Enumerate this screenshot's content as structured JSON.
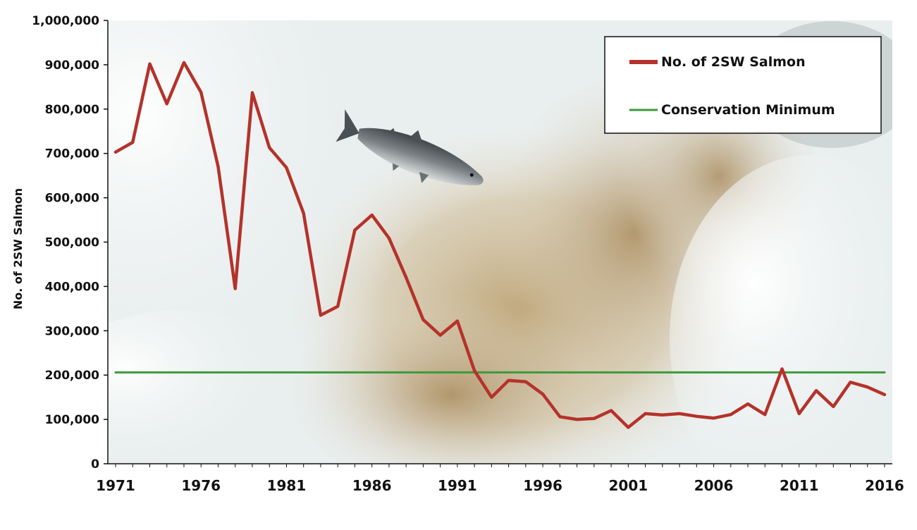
{
  "chart_data": {
    "type": "line",
    "title": "",
    "xlabel": "",
    "ylabel": "No. of 2SW Salmon",
    "xlim": [
      1971,
      2016
    ],
    "ylim": [
      0,
      1000000
    ],
    "x_ticks": [
      "1971",
      "1976",
      "1981",
      "1986",
      "1991",
      "1996",
      "2001",
      "2006",
      "2011",
      "2016"
    ],
    "y_ticks": [
      "0",
      "100,000",
      "200,000",
      "300,000",
      "400,000",
      "500,000",
      "600,000",
      "700,000",
      "800,000",
      "900,000",
      "1,000,000"
    ],
    "y_tick_values": [
      0,
      100000,
      200000,
      300000,
      400000,
      500000,
      600000,
      700000,
      800000,
      900000,
      1000000
    ],
    "grid": false,
    "legend_position": "top-right",
    "background": "photograph of rushing white water with a leaping salmon",
    "series": [
      {
        "name": "No. of 2SW Salmon",
        "color": "#b5322a",
        "x": [
          1971,
          1972,
          1973,
          1974,
          1975,
          1976,
          1977,
          1978,
          1979,
          1980,
          1981,
          1982,
          1983,
          1984,
          1985,
          1986,
          1987,
          1988,
          1989,
          1990,
          1991,
          1992,
          1993,
          1994,
          1995,
          1996,
          1997,
          1998,
          1999,
          2000,
          2001,
          2002,
          2003,
          2004,
          2005,
          2006,
          2007,
          2008,
          2009,
          2010,
          2011,
          2012,
          2013,
          2014,
          2015,
          2016
        ],
        "values": [
          703000,
          725000,
          902000,
          812000,
          905000,
          838000,
          670000,
          395000,
          837000,
          713000,
          668000,
          565000,
          335000,
          355000,
          527000,
          561000,
          509000,
          420000,
          325000,
          290000,
          322000,
          210000,
          150000,
          188000,
          185000,
          157000,
          106000,
          100000,
          102000,
          120000,
          82000,
          113000,
          110000,
          113000,
          107000,
          103000,
          111000,
          135000,
          111000,
          214000,
          113000,
          165000,
          129000,
          184000,
          173000,
          156000
        ]
      },
      {
        "name": "Conservation Minimum",
        "color": "#3c9a3c",
        "x": [
          1971,
          2016
        ],
        "values": [
          206000,
          206000
        ]
      }
    ]
  },
  "icons": {
    "fish": "leaping-salmon-icon"
  }
}
